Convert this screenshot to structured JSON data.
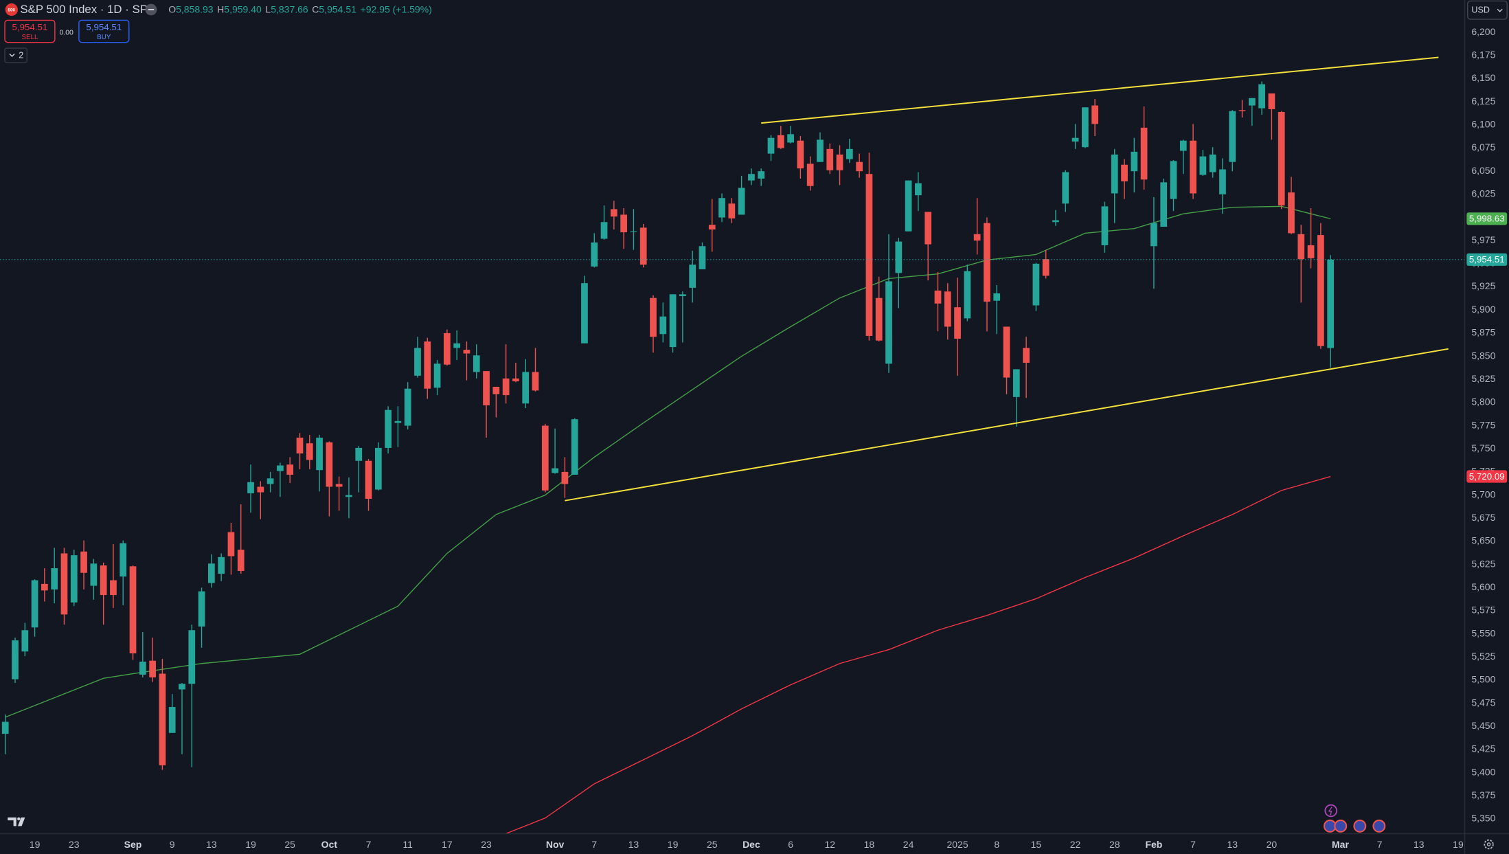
{
  "toolbar": {
    "symbol_badge": "500",
    "title": "S&P 500 Index · 1D · SP",
    "ohlc": [
      {
        "label": "O",
        "value": "5,858.93"
      },
      {
        "label": "H",
        "value": "5,959.40"
      },
      {
        "label": "L",
        "value": "5,837.66"
      },
      {
        "label": "C",
        "value": "5,954.51"
      }
    ],
    "change": "+92.95 (+1.59%)",
    "sell_price": "5,954.51",
    "sell_label": "SELL",
    "spread": "0.00",
    "buy_price": "5,954.51",
    "buy_label": "BUY",
    "indicators_count": "2",
    "currency": "USD"
  },
  "chart_data": {
    "type": "candlestick",
    "up_color": "#26a69a",
    "down_color": "#ef5350",
    "grid": false,
    "open": [
      5442,
      5501,
      5531,
      5557,
      5604,
      5598,
      5637,
      5584,
      5639,
      5602,
      5624,
      5608,
      5612,
      5623,
      5506,
      5521,
      5507,
      5443,
      5490,
      5496,
      5558,
      5605,
      5615,
      5660,
      5641,
      5702,
      5709,
      5712,
      5726,
      5733,
      5762,
      5756,
      5727,
      5757,
      5712,
      5698,
      5737,
      5737,
      5706,
      5751,
      5778,
      5775,
      5829,
      5866,
      5816,
      5875,
      5859,
      5857,
      5833,
      5834,
      5817,
      5826,
      5826,
      5799,
      5833,
      5775,
      5724,
      5725,
      5722,
      5864,
      5947,
      5977,
      6009,
      6003,
      5985,
      5989,
      5913,
      5874,
      5860,
      5915,
      5924,
      5944,
      5992,
      6000,
      6015,
      6003,
      6040,
      6042,
      6069,
      6089,
      6081,
      6083,
      6058,
      6060,
      6074,
      6068,
      6063,
      6060,
      6047,
      5913,
      5842,
      5940,
      5985,
      6024,
      6006,
      5921,
      5920,
      5903,
      5891,
      5982,
      5994,
      5910,
      5882,
      5806,
      5859,
      5905,
      5955,
      5995,
      6015,
      6082,
      6076,
      6121,
      5970,
      6026,
      6057,
      6050,
      6097,
      5969,
      5990,
      6020,
      6072,
      6083,
      6046,
      6049,
      6025,
      6060,
      6116,
      6121,
      6118,
      6134,
      6114,
      6027,
      5982,
      5970,
      5981,
      5858.93
    ],
    "high": [
      5463,
      5546,
      5562,
      5609,
      5621,
      5643,
      5643,
      5641,
      5651,
      5631,
      5627,
      5647,
      5651,
      5624,
      5552,
      5546,
      5523,
      5485,
      5497,
      5560,
      5600,
      5636,
      5637,
      5670,
      5690,
      5733,
      5715,
      5725,
      5735,
      5741,
      5767,
      5765,
      5765,
      5758,
      5720,
      5719,
      5753,
      5739,
      5757,
      5796,
      5796,
      5822,
      5871,
      5870,
      5846,
      5879,
      5878,
      5866,
      5863,
      5834,
      5817,
      5863,
      5843,
      5847,
      5859,
      5777,
      5772,
      5741,
      5783,
      5937,
      5983,
      6013,
      6018,
      6010,
      6009,
      5993,
      5916,
      5908,
      5917,
      5920,
      5964,
      5973,
      6020,
      6026,
      6021,
      6045,
      6053,
      6053,
      6089,
      6099,
      6099,
      6088,
      6066,
      6092,
      6080,
      6078,
      6085,
      6069,
      6070,
      5936,
      5982,
      5978,
      6040,
      6049,
      6006,
      5941,
      5929,
      5935,
      5949,
      6021,
      6000,
      5927,
      5882,
      5836,
      5871,
      5951,
      5965,
      6008,
      6051,
      6101,
      6119,
      6128,
      6017,
      6074,
      6063,
      6086,
      6120,
      6022,
      6042,
      6062,
      6084,
      6101,
      6073,
      6076,
      6064,
      6116,
      6127,
      6129,
      6147,
      6134,
      6115,
      6044,
      5992,
      6010,
      5994,
      5959.4
    ],
    "low": [
      5420,
      5497,
      5526,
      5547,
      5585,
      5583,
      5560,
      5580,
      5598,
      5587,
      5560,
      5578,
      5581,
      5522,
      5503,
      5498,
      5403,
      5443,
      5420,
      5406,
      5535,
      5600,
      5607,
      5614,
      5615,
      5681,
      5674,
      5703,
      5698,
      5713,
      5728,
      5728,
      5704,
      5677,
      5683,
      5675,
      5703,
      5683,
      5705,
      5745,
      5752,
      5771,
      5827,
      5804,
      5808,
      5840,
      5846,
      5824,
      5826,
      5762,
      5784,
      5799,
      5822,
      5794,
      5812,
      5703,
      5723,
      5697,
      5722,
      5864,
      5946,
      5976,
      5987,
      5966,
      5965,
      5946,
      5854,
      5865,
      5854,
      5865,
      5908,
      5944,
      5963,
      5995,
      5994,
      6003,
      6035,
      6034,
      6061,
      6074,
      6080,
      6042,
      6029,
      6060,
      6047,
      6035,
      6059,
      6043,
      5867,
      5866,
      5832,
      5902,
      5985,
      6007,
      5932,
      5877,
      5868,
      5829,
      5888,
      5960,
      5877,
      5874,
      5809,
      5774,
      5805,
      5899,
      5934,
      5991,
      6006,
      6074,
      6075,
      6088,
      5962,
      5994,
      6020,
      6027,
      6030,
      5923,
      5990,
      6007,
      6047,
      6020,
      6045,
      6043,
      6004,
      6050,
      6108,
      6099,
      6111,
      6084,
      6009,
      5982,
      5908,
      5945,
      5858,
      5837.66
    ],
    "close": [
      5455,
      5543,
      5554,
      5608,
      5597,
      5621,
      5571,
      5635,
      5616,
      5626,
      5592,
      5592,
      5648,
      5529,
      5520,
      5503,
      5408,
      5471,
      5496,
      5554,
      5596,
      5626,
      5633,
      5634,
      5618,
      5714,
      5703,
      5718,
      5732,
      5722,
      5745,
      5738,
      5762,
      5709,
      5709,
      5700,
      5751,
      5696,
      5751,
      5792,
      5780,
      5815,
      5859,
      5815,
      5842,
      5841,
      5864,
      5853,
      5851,
      5797,
      5809,
      5808,
      5823,
      5833,
      5813,
      5705,
      5729,
      5712,
      5782,
      5929,
      5973,
      5995,
      6001,
      5984,
      5985,
      5949,
      5871,
      5893,
      5917,
      5917,
      5949,
      5969,
      5987,
      6021,
      5999,
      6032,
      6047,
      6050,
      6086,
      6075,
      6090,
      6053,
      6034,
      6084,
      6051,
      6051,
      6074,
      6050,
      5872,
      5867,
      5931,
      5974,
      6040,
      6037,
      5971,
      5907,
      5882,
      5869,
      5942,
      5975,
      5909,
      5918,
      5827,
      5836,
      5843,
      5950,
      5937,
      5997,
      6049,
      6086,
      6119,
      6101,
      6012,
      6068,
      6039,
      6071,
      6041,
      5994,
      6038,
      6061,
      6083,
      6026,
      6066,
      6068,
      6052,
      6115,
      6115,
      6129,
      6144,
      6117,
      6013,
      5983,
      5955,
      5956,
      5861,
      5954.51
    ],
    "moving_averages": [
      {
        "color": "#43a047",
        "x": [
          0,
          10,
          13,
          20,
          30,
          35,
          40,
          45,
          50,
          55,
          60,
          65,
          70,
          75,
          80,
          85,
          90,
          95,
          100,
          105,
          110,
          115,
          120,
          125,
          130,
          135
        ],
        "values": [
          5460,
          5502,
          5507,
          5518,
          5528,
          5554,
          5580,
          5637,
          5679,
          5700,
          5741,
          5778,
          5814,
          5850,
          5882,
          5913,
          5934,
          5939,
          5954,
          5960,
          5983,
          5988,
          6004,
          6011,
          6012,
          5998.63
        ]
      },
      {
        "color": "#f23645",
        "x": [
          50,
          55,
          60,
          65,
          70,
          75,
          80,
          85,
          90,
          95,
          100,
          105,
          110,
          115,
          120,
          125,
          130,
          135
        ],
        "values": [
          5330,
          5351,
          5388,
          5414,
          5440,
          5469,
          5495,
          5518,
          5533,
          5554,
          5570,
          5588,
          5611,
          5632,
          5656,
          5679,
          5705,
          5720.09
        ]
      }
    ],
    "trendlines": [
      {
        "color": "#f5e13b",
        "x": [
          77,
          146
        ],
        "values": [
          6102,
          6173
        ]
      },
      {
        "color": "#f5e13b",
        "x": [
          57,
          147
        ],
        "values": [
          5694,
          5858
        ]
      }
    ],
    "price_labels": [
      {
        "value": 5998.63,
        "label": "5,998.63",
        "color": "#4caf50"
      },
      {
        "value": 5954.51,
        "label": "5,954.51",
        "color": "#26a69a",
        "last_price_line": true
      },
      {
        "value": 5720.09,
        "label": "5,720.09",
        "color": "#f23645"
      }
    ],
    "xlim": [
      -0.54,
      148.67
    ],
    "ylim": [
      5334,
      6235
    ],
    "xticks": [
      {
        "value": 3,
        "label": "19"
      },
      {
        "value": 7,
        "label": "23"
      },
      {
        "value": 13,
        "label": "Sep"
      },
      {
        "value": 17,
        "label": "9"
      },
      {
        "value": 21,
        "label": "13"
      },
      {
        "value": 25,
        "label": "19"
      },
      {
        "value": 29,
        "label": "25"
      },
      {
        "value": 33,
        "label": "Oct"
      },
      {
        "value": 37,
        "label": "7"
      },
      {
        "value": 41,
        "label": "11"
      },
      {
        "value": 45,
        "label": "17"
      },
      {
        "value": 49,
        "label": "23"
      },
      {
        "value": 56,
        "label": "Nov"
      },
      {
        "value": 60,
        "label": "7"
      },
      {
        "value": 64,
        "label": "13"
      },
      {
        "value": 68,
        "label": "19"
      },
      {
        "value": 72,
        "label": "25"
      },
      {
        "value": 76,
        "label": "Dec"
      },
      {
        "value": 80,
        "label": "6"
      },
      {
        "value": 84,
        "label": "12"
      },
      {
        "value": 88,
        "label": "18"
      },
      {
        "value": 92,
        "label": "24"
      },
      {
        "value": 97,
        "label": "2025"
      },
      {
        "value": 101,
        "label": "8"
      },
      {
        "value": 105,
        "label": "15"
      },
      {
        "value": 109,
        "label": "22"
      },
      {
        "value": 113,
        "label": "28"
      },
      {
        "value": 117,
        "label": "Feb"
      },
      {
        "value": 121,
        "label": "7"
      },
      {
        "value": 125,
        "label": "13"
      },
      {
        "value": 129,
        "label": "20"
      },
      {
        "value": 136,
        "label": "Mar"
      },
      {
        "value": 140,
        "label": "7"
      },
      {
        "value": 144,
        "label": "13"
      },
      {
        "value": 148,
        "label": "19"
      }
    ],
    "yticks": [
      {
        "value": 5350,
        "label": "5,350"
      },
      {
        "value": 5375,
        "label": "5,375"
      },
      {
        "value": 5400,
        "label": "5,400"
      },
      {
        "value": 5425,
        "label": "5,425"
      },
      {
        "value": 5450,
        "label": "5,450"
      },
      {
        "value": 5475,
        "label": "5,475"
      },
      {
        "value": 5500,
        "label": "5,500"
      },
      {
        "value": 5525,
        "label": "5,525"
      },
      {
        "value": 5550,
        "label": "5,550"
      },
      {
        "value": 5575,
        "label": "5,575"
      },
      {
        "value": 5600,
        "label": "5,600"
      },
      {
        "value": 5625,
        "label": "5,625"
      },
      {
        "value": 5650,
        "label": "5,650"
      },
      {
        "value": 5675,
        "label": "5,675"
      },
      {
        "value": 5700,
        "label": "5,700"
      },
      {
        "value": 5725,
        "label": "5,725"
      },
      {
        "value": 5750,
        "label": "5,750"
      },
      {
        "value": 5775,
        "label": "5,775"
      },
      {
        "value": 5800,
        "label": "5,800"
      },
      {
        "value": 5825,
        "label": "5,825"
      },
      {
        "value": 5850,
        "label": "5,850"
      },
      {
        "value": 5875,
        "label": "5,875"
      },
      {
        "value": 5900,
        "label": "5,900"
      },
      {
        "value": 5925,
        "label": "5,925"
      },
      {
        "value": 5950,
        "label": "5,950"
      },
      {
        "value": 5975,
        "label": "5,975"
      },
      {
        "value": 6000,
        "label": "6,000"
      },
      {
        "value": 6025,
        "label": "6,025"
      },
      {
        "value": 6050,
        "label": "6,050"
      },
      {
        "value": 6075,
        "label": "6,075"
      },
      {
        "value": 6100,
        "label": "6,100"
      },
      {
        "value": 6125,
        "label": "6,125"
      },
      {
        "value": 6150,
        "label": "6,150"
      },
      {
        "value": 6175,
        "label": "6,175"
      },
      {
        "value": 6200,
        "label": "6,200"
      }
    ]
  }
}
